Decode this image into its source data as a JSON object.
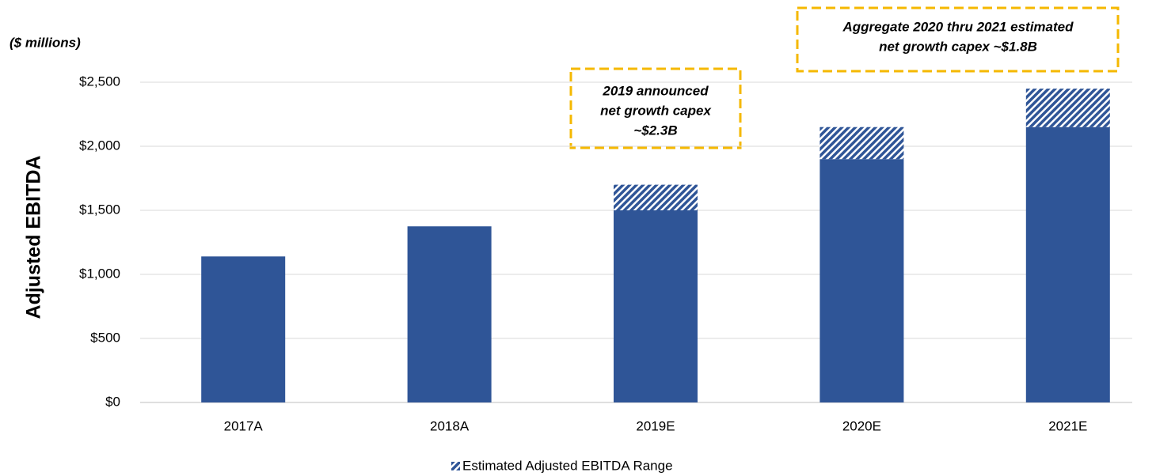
{
  "chart_data": {
    "type": "stacked_bar",
    "y_axis_label": "Adjusted EBITDA",
    "unit_note": "($ millions)",
    "categories": [
      "2017A",
      "2018A",
      "2019E",
      "2020E",
      "2021E"
    ],
    "series": [
      {
        "color": "#2f5597",
        "values": [
          1140,
          1375,
          1500,
          1900,
          2150
        ]
      },
      {
        "name": "Estimated Adjusted EBITDA Range",
        "color": "#2f5597",
        "pattern": "hatch",
        "values": [
          null,
          null,
          200,
          250,
          300
        ]
      }
    ],
    "ylim": [
      0,
      2500
    ],
    "yticks": [
      {
        "value": 0,
        "label": "$0"
      },
      {
        "value": 500,
        "label": "$500"
      },
      {
        "value": 1000,
        "label": "$1,000"
      },
      {
        "value": 1500,
        "label": "$1,500"
      },
      {
        "value": 2000,
        "label": "$2,000"
      },
      {
        "value": 2500,
        "label": "$2,500"
      }
    ],
    "grid": true,
    "legend_position": "bottom",
    "annotations": [
      {
        "lines": [
          "2019 announced",
          "net growth capex",
          "~$2.3B"
        ]
      },
      {
        "lines": [
          "Aggregate 2020 thru 2021 estimated",
          "net growth capex ~$1.8B"
        ]
      }
    ]
  }
}
